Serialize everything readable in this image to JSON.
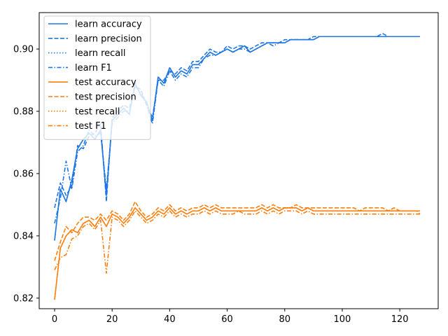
{
  "chart_data": {
    "type": "line",
    "title": "",
    "xlabel": "",
    "ylabel": "",
    "xlim": [
      -5.35,
      133.35
    ],
    "ylim": [
      0.8166,
      0.9117
    ],
    "x_ticks": [
      0,
      20,
      40,
      60,
      80,
      100,
      120
    ],
    "y_ticks": [
      0.82,
      0.84,
      0.86,
      0.88,
      0.9
    ],
    "x_tick_labels": [
      "0",
      "20",
      "40",
      "60",
      "80",
      "100",
      "120"
    ],
    "y_tick_labels": [
      "0.82",
      "0.84",
      "0.86",
      "0.88",
      "0.90"
    ],
    "grid": false,
    "legend_position": "upper-left",
    "colors": {
      "learn": "#1f77e4",
      "test": "#ff7f0e"
    },
    "x": [
      0,
      2,
      4,
      6,
      8,
      10,
      12,
      14,
      16,
      18,
      20,
      22,
      24,
      26,
      28,
      30,
      32,
      34,
      36,
      38,
      40,
      42,
      44,
      46,
      48,
      50,
      52,
      54,
      56,
      58,
      60,
      62,
      64,
      66,
      68,
      70,
      72,
      74,
      76,
      78,
      80,
      82,
      84,
      86,
      88,
      90,
      92,
      94,
      96,
      98,
      100,
      102,
      104,
      106,
      108,
      110,
      112,
      114,
      116,
      118,
      120,
      122,
      124,
      126,
      127
    ],
    "series": [
      {
        "name": "learn accuracy",
        "group": "learn",
        "dash": "solid",
        "values": [
          0.8385,
          0.855,
          0.851,
          0.858,
          0.868,
          0.871,
          0.873,
          0.871,
          0.874,
          0.853,
          0.877,
          0.879,
          0.881,
          0.879,
          0.889,
          0.885,
          0.883,
          0.877,
          0.891,
          0.889,
          0.894,
          0.891,
          0.893,
          0.892,
          0.895,
          0.895,
          0.897,
          0.899,
          0.898,
          0.899,
          0.9,
          0.899,
          0.9,
          0.901,
          0.899,
          0.9,
          0.901,
          0.902,
          0.902,
          0.902,
          0.902,
          0.903,
          0.903,
          0.903,
          0.903,
          0.903,
          0.904,
          0.904,
          0.904,
          0.904,
          0.904,
          0.904,
          0.904,
          0.904,
          0.904,
          0.904,
          0.904,
          0.904,
          0.904,
          0.904,
          0.904,
          0.904,
          0.904,
          0.904,
          0.904
        ]
      },
      {
        "name": "learn precision",
        "group": "learn",
        "dash": "dashed",
        "values": [
          0.849,
          0.857,
          0.853,
          0.856,
          0.869,
          0.868,
          0.872,
          0.873,
          0.876,
          0.851,
          0.878,
          0.88,
          0.882,
          0.881,
          0.888,
          0.887,
          0.882,
          0.878,
          0.89,
          0.89,
          0.893,
          0.892,
          0.894,
          0.893,
          0.896,
          0.896,
          0.898,
          0.9,
          0.899,
          0.899,
          0.901,
          0.9,
          0.901,
          0.901,
          0.9,
          0.901,
          0.902,
          0.902,
          0.902,
          0.902,
          0.903,
          0.903,
          0.903,
          0.903,
          0.903,
          0.904,
          0.904,
          0.904,
          0.904,
          0.904,
          0.904,
          0.904,
          0.904,
          0.904,
          0.904,
          0.904,
          0.904,
          0.905,
          0.904,
          0.904,
          0.904,
          0.904,
          0.904,
          0.904,
          0.904
        ]
      },
      {
        "name": "learn recall",
        "group": "learn",
        "dash": "dotted",
        "values": [
          0.8385,
          0.855,
          0.851,
          0.858,
          0.868,
          0.871,
          0.873,
          0.871,
          0.874,
          0.853,
          0.877,
          0.879,
          0.881,
          0.879,
          0.889,
          0.885,
          0.883,
          0.877,
          0.891,
          0.889,
          0.894,
          0.891,
          0.893,
          0.892,
          0.895,
          0.895,
          0.897,
          0.899,
          0.898,
          0.899,
          0.9,
          0.899,
          0.9,
          0.901,
          0.899,
          0.9,
          0.901,
          0.902,
          0.902,
          0.902,
          0.902,
          0.903,
          0.903,
          0.903,
          0.903,
          0.903,
          0.904,
          0.904,
          0.904,
          0.904,
          0.904,
          0.904,
          0.904,
          0.904,
          0.904,
          0.904,
          0.904,
          0.904,
          0.904,
          0.904,
          0.904,
          0.904,
          0.904,
          0.904,
          0.904
        ]
      },
      {
        "name": "learn F1",
        "group": "learn",
        "dash": "dashdot",
        "values": [
          0.844,
          0.852,
          0.864,
          0.855,
          0.867,
          0.869,
          0.874,
          0.872,
          0.873,
          0.855,
          0.876,
          0.878,
          0.88,
          0.88,
          0.888,
          0.886,
          0.882,
          0.876,
          0.89,
          0.888,
          0.893,
          0.89,
          0.892,
          0.891,
          0.894,
          0.894,
          0.897,
          0.898,
          0.898,
          0.899,
          0.9,
          0.899,
          0.9,
          0.9,
          0.899,
          0.9,
          0.901,
          0.902,
          0.901,
          0.902,
          0.902,
          0.903,
          0.903,
          0.903,
          0.903,
          0.903,
          0.904,
          0.904,
          0.904,
          0.904,
          0.904,
          0.904,
          0.904,
          0.904,
          0.904,
          0.904,
          0.904,
          0.904,
          0.904,
          0.904,
          0.904,
          0.904,
          0.904,
          0.904,
          0.904
        ]
      },
      {
        "name": "test accuracy",
        "group": "test",
        "dash": "solid",
        "values": [
          0.8195,
          0.836,
          0.84,
          0.842,
          0.841,
          0.844,
          0.845,
          0.843,
          0.846,
          0.843,
          0.847,
          0.846,
          0.844,
          0.846,
          0.849,
          0.847,
          0.845,
          0.846,
          0.848,
          0.847,
          0.849,
          0.847,
          0.848,
          0.847,
          0.848,
          0.848,
          0.849,
          0.848,
          0.849,
          0.848,
          0.848,
          0.848,
          0.848,
          0.848,
          0.848,
          0.848,
          0.849,
          0.848,
          0.849,
          0.848,
          0.849,
          0.849,
          0.849,
          0.848,
          0.849,
          0.848,
          0.848,
          0.848,
          0.848,
          0.848,
          0.848,
          0.848,
          0.848,
          0.848,
          0.848,
          0.848,
          0.848,
          0.848,
          0.848,
          0.848,
          0.848,
          0.848,
          0.848,
          0.848,
          0.848
        ]
      },
      {
        "name": "test precision",
        "group": "test",
        "dash": "dashed",
        "values": [
          0.832,
          0.838,
          0.843,
          0.841,
          0.844,
          0.846,
          0.846,
          0.845,
          0.847,
          0.845,
          0.848,
          0.847,
          0.845,
          0.847,
          0.851,
          0.848,
          0.846,
          0.847,
          0.849,
          0.848,
          0.85,
          0.848,
          0.849,
          0.848,
          0.849,
          0.849,
          0.85,
          0.849,
          0.85,
          0.849,
          0.849,
          0.849,
          0.849,
          0.849,
          0.849,
          0.849,
          0.85,
          0.849,
          0.85,
          0.849,
          0.849,
          0.849,
          0.85,
          0.849,
          0.849,
          0.849,
          0.849,
          0.849,
          0.849,
          0.849,
          0.849,
          0.849,
          0.849,
          0.848,
          0.849,
          0.849,
          0.849,
          0.849,
          0.848,
          0.849,
          0.848,
          0.848,
          0.848,
          0.848,
          0.847
        ]
      },
      {
        "name": "test recall",
        "group": "test",
        "dash": "dotted",
        "values": [
          0.8195,
          0.836,
          0.84,
          0.842,
          0.841,
          0.844,
          0.845,
          0.843,
          0.846,
          0.843,
          0.847,
          0.846,
          0.844,
          0.846,
          0.849,
          0.847,
          0.845,
          0.846,
          0.848,
          0.847,
          0.849,
          0.847,
          0.848,
          0.847,
          0.848,
          0.848,
          0.849,
          0.848,
          0.849,
          0.848,
          0.848,
          0.848,
          0.848,
          0.848,
          0.848,
          0.848,
          0.849,
          0.848,
          0.849,
          0.848,
          0.849,
          0.849,
          0.849,
          0.848,
          0.849,
          0.848,
          0.848,
          0.848,
          0.848,
          0.848,
          0.848,
          0.848,
          0.848,
          0.848,
          0.848,
          0.848,
          0.848,
          0.848,
          0.848,
          0.848,
          0.848,
          0.848,
          0.848,
          0.848,
          0.848
        ]
      },
      {
        "name": "test F1",
        "group": "test",
        "dash": "dashdot",
        "values": [
          0.829,
          0.833,
          0.834,
          0.839,
          0.84,
          0.843,
          0.844,
          0.842,
          0.845,
          0.828,
          0.846,
          0.845,
          0.843,
          0.845,
          0.848,
          0.846,
          0.844,
          0.845,
          0.847,
          0.846,
          0.848,
          0.846,
          0.847,
          0.846,
          0.847,
          0.847,
          0.848,
          0.847,
          0.848,
          0.847,
          0.847,
          0.847,
          0.848,
          0.847,
          0.847,
          0.847,
          0.848,
          0.847,
          0.848,
          0.847,
          0.848,
          0.848,
          0.848,
          0.847,
          0.848,
          0.847,
          0.847,
          0.847,
          0.847,
          0.847,
          0.847,
          0.847,
          0.847,
          0.847,
          0.847,
          0.847,
          0.847,
          0.847,
          0.847,
          0.847,
          0.847,
          0.847,
          0.847,
          0.847,
          0.847
        ]
      }
    ]
  }
}
